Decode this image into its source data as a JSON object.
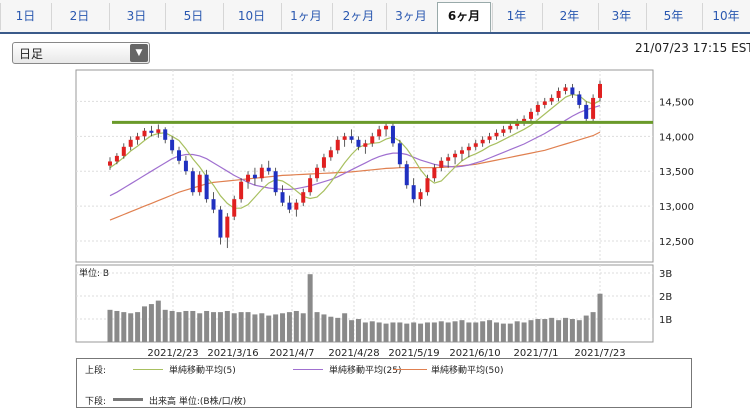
{
  "tabs": [
    {
      "label": "1日",
      "active": false
    },
    {
      "label": "2日",
      "active": false
    },
    {
      "label": "3日",
      "active": false
    },
    {
      "label": "5日",
      "active": false
    },
    {
      "label": "10日",
      "active": false
    },
    {
      "label": "1ヶ月",
      "active": false
    },
    {
      "label": "2ヶ月",
      "active": false
    },
    {
      "label": "3ヶ月",
      "active": false
    },
    {
      "label": "6ヶ月",
      "active": true
    },
    {
      "label": "1年",
      "active": false
    },
    {
      "label": "2年",
      "active": false
    },
    {
      "label": "3年",
      "active": false
    },
    {
      "label": "5年",
      "active": false
    },
    {
      "label": "10年",
      "active": false
    }
  ],
  "period_select": {
    "value": "日足"
  },
  "timestamp": "21/07/23 17:15 EST",
  "volume_unit_label": "単位: B",
  "legend": {
    "upper_label": "上段:",
    "lower_label": "下段:",
    "ma5": "単純移動平均(5)",
    "ma25": "単純移動平均(25)",
    "ma50": "単純移動平均(50)",
    "volume": "出来高 単位:(B株/口/枚)"
  },
  "colors": {
    "ma5": "#a8c060",
    "ma25": "#a070d0",
    "ma50": "#e08050",
    "up": "#e02020",
    "down": "#2030c0",
    "hline": "#6a9a2a",
    "volume": "#8a8a8a"
  },
  "chart_data": {
    "type": "candlestick",
    "x_tick_labels": [
      "2021/2/23",
      "2021/3/16",
      "2021/4/7",
      "2021/4/28",
      "2021/5/19",
      "2021/6/10",
      "2021/7/1",
      "2021/7/23"
    ],
    "y_tick_labels": [
      "14,500",
      "14,000",
      "13,500",
      "13,000",
      "12,500"
    ],
    "y_ticks": [
      14500,
      14000,
      13500,
      13000,
      12500
    ],
    "ylim": [
      12200,
      14950
    ],
    "horizontal_line": 14200,
    "volume_tick_labels": [
      "3B",
      "2B",
      "1B"
    ],
    "volume_ticks": [
      3,
      2,
      1
    ],
    "volume_ylim": [
      0,
      3.35
    ],
    "candles": [
      [
        13580,
        13700,
        13520,
        13640
      ],
      [
        13640,
        13760,
        13600,
        13720
      ],
      [
        13720,
        13900,
        13680,
        13850
      ],
      [
        13850,
        14000,
        13800,
        13950
      ],
      [
        13950,
        14050,
        13880,
        14000
      ],
      [
        14000,
        14120,
        13950,
        14080
      ],
      [
        14080,
        14150,
        14000,
        14050
      ],
      [
        14050,
        14170,
        13980,
        14100
      ],
      [
        14100,
        14130,
        13900,
        13950
      ],
      [
        13950,
        14000,
        13750,
        13800
      ],
      [
        13800,
        13850,
        13600,
        13650
      ],
      [
        13650,
        13720,
        13450,
        13500
      ],
      [
        13500,
        13550,
        13150,
        13200
      ],
      [
        13200,
        13500,
        13150,
        13450
      ],
      [
        13450,
        13520,
        13050,
        13100
      ],
      [
        13100,
        13200,
        12900,
        12950
      ],
      [
        12950,
        13000,
        12450,
        12550
      ],
      [
        12550,
        12900,
        12400,
        12850
      ],
      [
        12850,
        13150,
        12800,
        13100
      ],
      [
        13100,
        13400,
        13050,
        13350
      ],
      [
        13350,
        13500,
        13250,
        13450
      ],
      [
        13450,
        13550,
        13300,
        13400
      ],
      [
        13400,
        13600,
        13350,
        13550
      ],
      [
        13550,
        13650,
        13450,
        13500
      ],
      [
        13500,
        13550,
        13150,
        13200
      ],
      [
        13200,
        13300,
        13000,
        13050
      ],
      [
        13050,
        13150,
        12900,
        12950
      ],
      [
        12950,
        13100,
        12850,
        13050
      ],
      [
        13050,
        13250,
        13000,
        13200
      ],
      [
        13200,
        13450,
        13150,
        13400
      ],
      [
        13400,
        13600,
        13350,
        13550
      ],
      [
        13550,
        13750,
        13500,
        13700
      ],
      [
        13700,
        13850,
        13650,
        13800
      ],
      [
        13800,
        14000,
        13750,
        13950
      ],
      [
        13950,
        14050,
        13850,
        14000
      ],
      [
        14000,
        14100,
        13900,
        13950
      ],
      [
        13950,
        14000,
        13800,
        13850
      ],
      [
        13850,
        13950,
        13750,
        13900
      ],
      [
        13900,
        14050,
        13850,
        14000
      ],
      [
        14000,
        14150,
        13950,
        14100
      ],
      [
        14100,
        14200,
        14000,
        14150
      ],
      [
        14150,
        14200,
        13850,
        13900
      ],
      [
        13900,
        13950,
        13550,
        13600
      ],
      [
        13600,
        13650,
        13250,
        13300
      ],
      [
        13300,
        13400,
        13050,
        13100
      ],
      [
        13100,
        13250,
        13000,
        13200
      ],
      [
        13200,
        13450,
        13150,
        13400
      ],
      [
        13400,
        13600,
        13350,
        13550
      ],
      [
        13550,
        13700,
        13500,
        13650
      ],
      [
        13650,
        13750,
        13550,
        13700
      ],
      [
        13700,
        13800,
        13600,
        13750
      ],
      [
        13750,
        13850,
        13650,
        13800
      ],
      [
        13800,
        13900,
        13700,
        13850
      ],
      [
        13850,
        13950,
        13800,
        13900
      ],
      [
        13900,
        14000,
        13850,
        13950
      ],
      [
        13950,
        14050,
        13900,
        14000
      ],
      [
        14000,
        14100,
        13950,
        14050
      ],
      [
        14050,
        14150,
        14000,
        14100
      ],
      [
        14100,
        14200,
        14050,
        14150
      ],
      [
        14150,
        14250,
        14100,
        14200
      ],
      [
        14200,
        14300,
        14150,
        14250
      ],
      [
        14250,
        14400,
        14200,
        14350
      ],
      [
        14350,
        14500,
        14300,
        14450
      ],
      [
        14450,
        14550,
        14400,
        14500
      ],
      [
        14500,
        14600,
        14450,
        14550
      ],
      [
        14550,
        14700,
        14500,
        14650
      ],
      [
        14650,
        14750,
        14600,
        14700
      ],
      [
        14700,
        14750,
        14550,
        14600
      ],
      [
        14600,
        14650,
        14400,
        14450
      ],
      [
        14450,
        14500,
        14200,
        14250
      ],
      [
        14250,
        14600,
        14200,
        14550
      ],
      [
        14550,
        14800,
        14500,
        14750
      ]
    ],
    "ma5": [
      13550,
      13620,
      13700,
      13790,
      13860,
      13940,
      14010,
      14040,
      14050,
      14000,
      13940,
      13820,
      13680,
      13560,
      13420,
      13300,
      13150,
      13040,
      12970,
      12970,
      13020,
      13130,
      13240,
      13330,
      13380,
      13360,
      13300,
      13220,
      13140,
      13110,
      13130,
      13220,
      13340,
      13480,
      13620,
      13740,
      13840,
      13880,
      13900,
      13910,
      13960,
      13990,
      13930,
      13820,
      13680,
      13520,
      13400,
      13330,
      13360,
      13460,
      13560,
      13650,
      13710,
      13750,
      13800,
      13860,
      13900,
      13950,
      14000,
      14050,
      14100,
      14160,
      14240,
      14320,
      14400,
      14480,
      14560,
      14600,
      14580,
      14500,
      14460,
      14510
    ],
    "ma25": [
      13150,
      13200,
      13260,
      13320,
      13380,
      13440,
      13500,
      13560,
      13620,
      13680,
      13720,
      13740,
      13740,
      13720,
      13680,
      13620,
      13560,
      13500,
      13440,
      13390,
      13340,
      13300,
      13280,
      13260,
      13250,
      13240,
      13240,
      13250,
      13270,
      13290,
      13320,
      13350,
      13380,
      13420,
      13470,
      13520,
      13570,
      13620,
      13670,
      13710,
      13740,
      13760,
      13760,
      13740,
      13700,
      13660,
      13630,
      13600,
      13580,
      13570,
      13560,
      13570,
      13590,
      13620,
      13650,
      13690,
      13730,
      13770,
      13810,
      13850,
      13890,
      13940,
      13990,
      14040,
      14100,
      14160,
      14230,
      14290,
      14340,
      14380,
      14410,
      14440
    ],
    "ma50": [
      12800,
      12840,
      12880,
      12920,
      12960,
      13000,
      13040,
      13080,
      13120,
      13160,
      13200,
      13230,
      13260,
      13290,
      13320,
      13340,
      13350,
      13360,
      13370,
      13380,
      13390,
      13400,
      13410,
      13420,
      13430,
      13440,
      13445,
      13450,
      13455,
      13460,
      13465,
      13470,
      13475,
      13480,
      13485,
      13490,
      13500,
      13510,
      13520,
      13530,
      13540,
      13545,
      13550,
      13550,
      13550,
      13550,
      13550,
      13550,
      13555,
      13560,
      13570,
      13580,
      13590,
      13600,
      13620,
      13640,
      13660,
      13680,
      13700,
      13720,
      13740,
      13760,
      13780,
      13800,
      13830,
      13860,
      13890,
      13920,
      13950,
      13980,
      14010,
      14060
    ],
    "volume": [
      1.4,
      1.35,
      1.3,
      1.25,
      1.3,
      1.55,
      1.65,
      1.8,
      1.4,
      1.35,
      1.3,
      1.35,
      1.35,
      1.25,
      1.35,
      1.3,
      1.3,
      1.35,
      1.25,
      1.3,
      1.3,
      1.2,
      1.25,
      1.15,
      1.2,
      1.25,
      1.3,
      1.35,
      1.25,
      2.95,
      1.3,
      1.2,
      1.1,
      1.05,
      1.25,
      0.95,
      1.0,
      0.85,
      0.9,
      0.85,
      0.8,
      0.85,
      0.85,
      0.8,
      0.85,
      0.8,
      0.85,
      0.85,
      0.9,
      0.85,
      0.9,
      0.95,
      0.85,
      0.85,
      0.9,
      0.95,
      0.85,
      0.8,
      0.8,
      0.9,
      0.85,
      0.95,
      1.0,
      1.0,
      1.05,
      0.95,
      1.05,
      1.0,
      0.95,
      1.15,
      1.3,
      2.1
    ]
  }
}
